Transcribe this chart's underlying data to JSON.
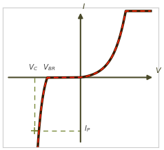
{
  "bg_color": "#ffffff",
  "border_color": "#cccccc",
  "axis_color": "#4a4a2a",
  "curve_color_red": "#ff2200",
  "curve_color_dark": "#3a1a00",
  "dashed_color": "#7a8a3a",
  "label_i": "I",
  "label_v": "V",
  "label_vc": "$V_C$",
  "label_vbr": "$V_{BR}$",
  "label_ip": "$I_P$",
  "vc_x": -2.5,
  "vbr_x": -1.8,
  "ip_y": -3.2,
  "xlim": [
    -4.2,
    4.2
  ],
  "ylim": [
    -4.2,
    4.2
  ],
  "figsize": [
    2.38,
    2.18
  ],
  "dpi": 100
}
